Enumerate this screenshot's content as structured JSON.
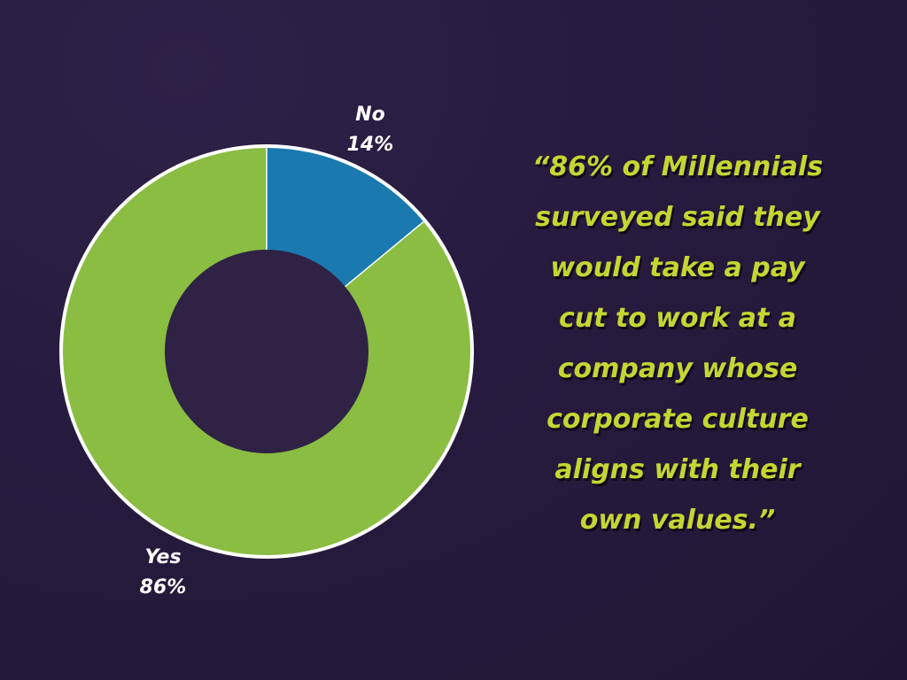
{
  "chart_data": {
    "type": "pie",
    "variant": "donut",
    "slices": [
      {
        "label": "No",
        "value": 14,
        "value_text": "14%",
        "color": "#1a7ab0"
      },
      {
        "label": "Yes",
        "value": 86,
        "value_text": "86%",
        "color": "#8abd42"
      }
    ],
    "start": "top",
    "direction": "clockwise",
    "slice_border_color": "#ffffff",
    "hole_color": "#2f2245"
  },
  "quote": {
    "lines": [
      "“86% of Millennials",
      "surveyed said they",
      "would take a pay",
      "cut to work at a",
      "company whose",
      "corporate culture",
      "aligns with their",
      "own values.”"
    ],
    "color": "#c4d632"
  }
}
